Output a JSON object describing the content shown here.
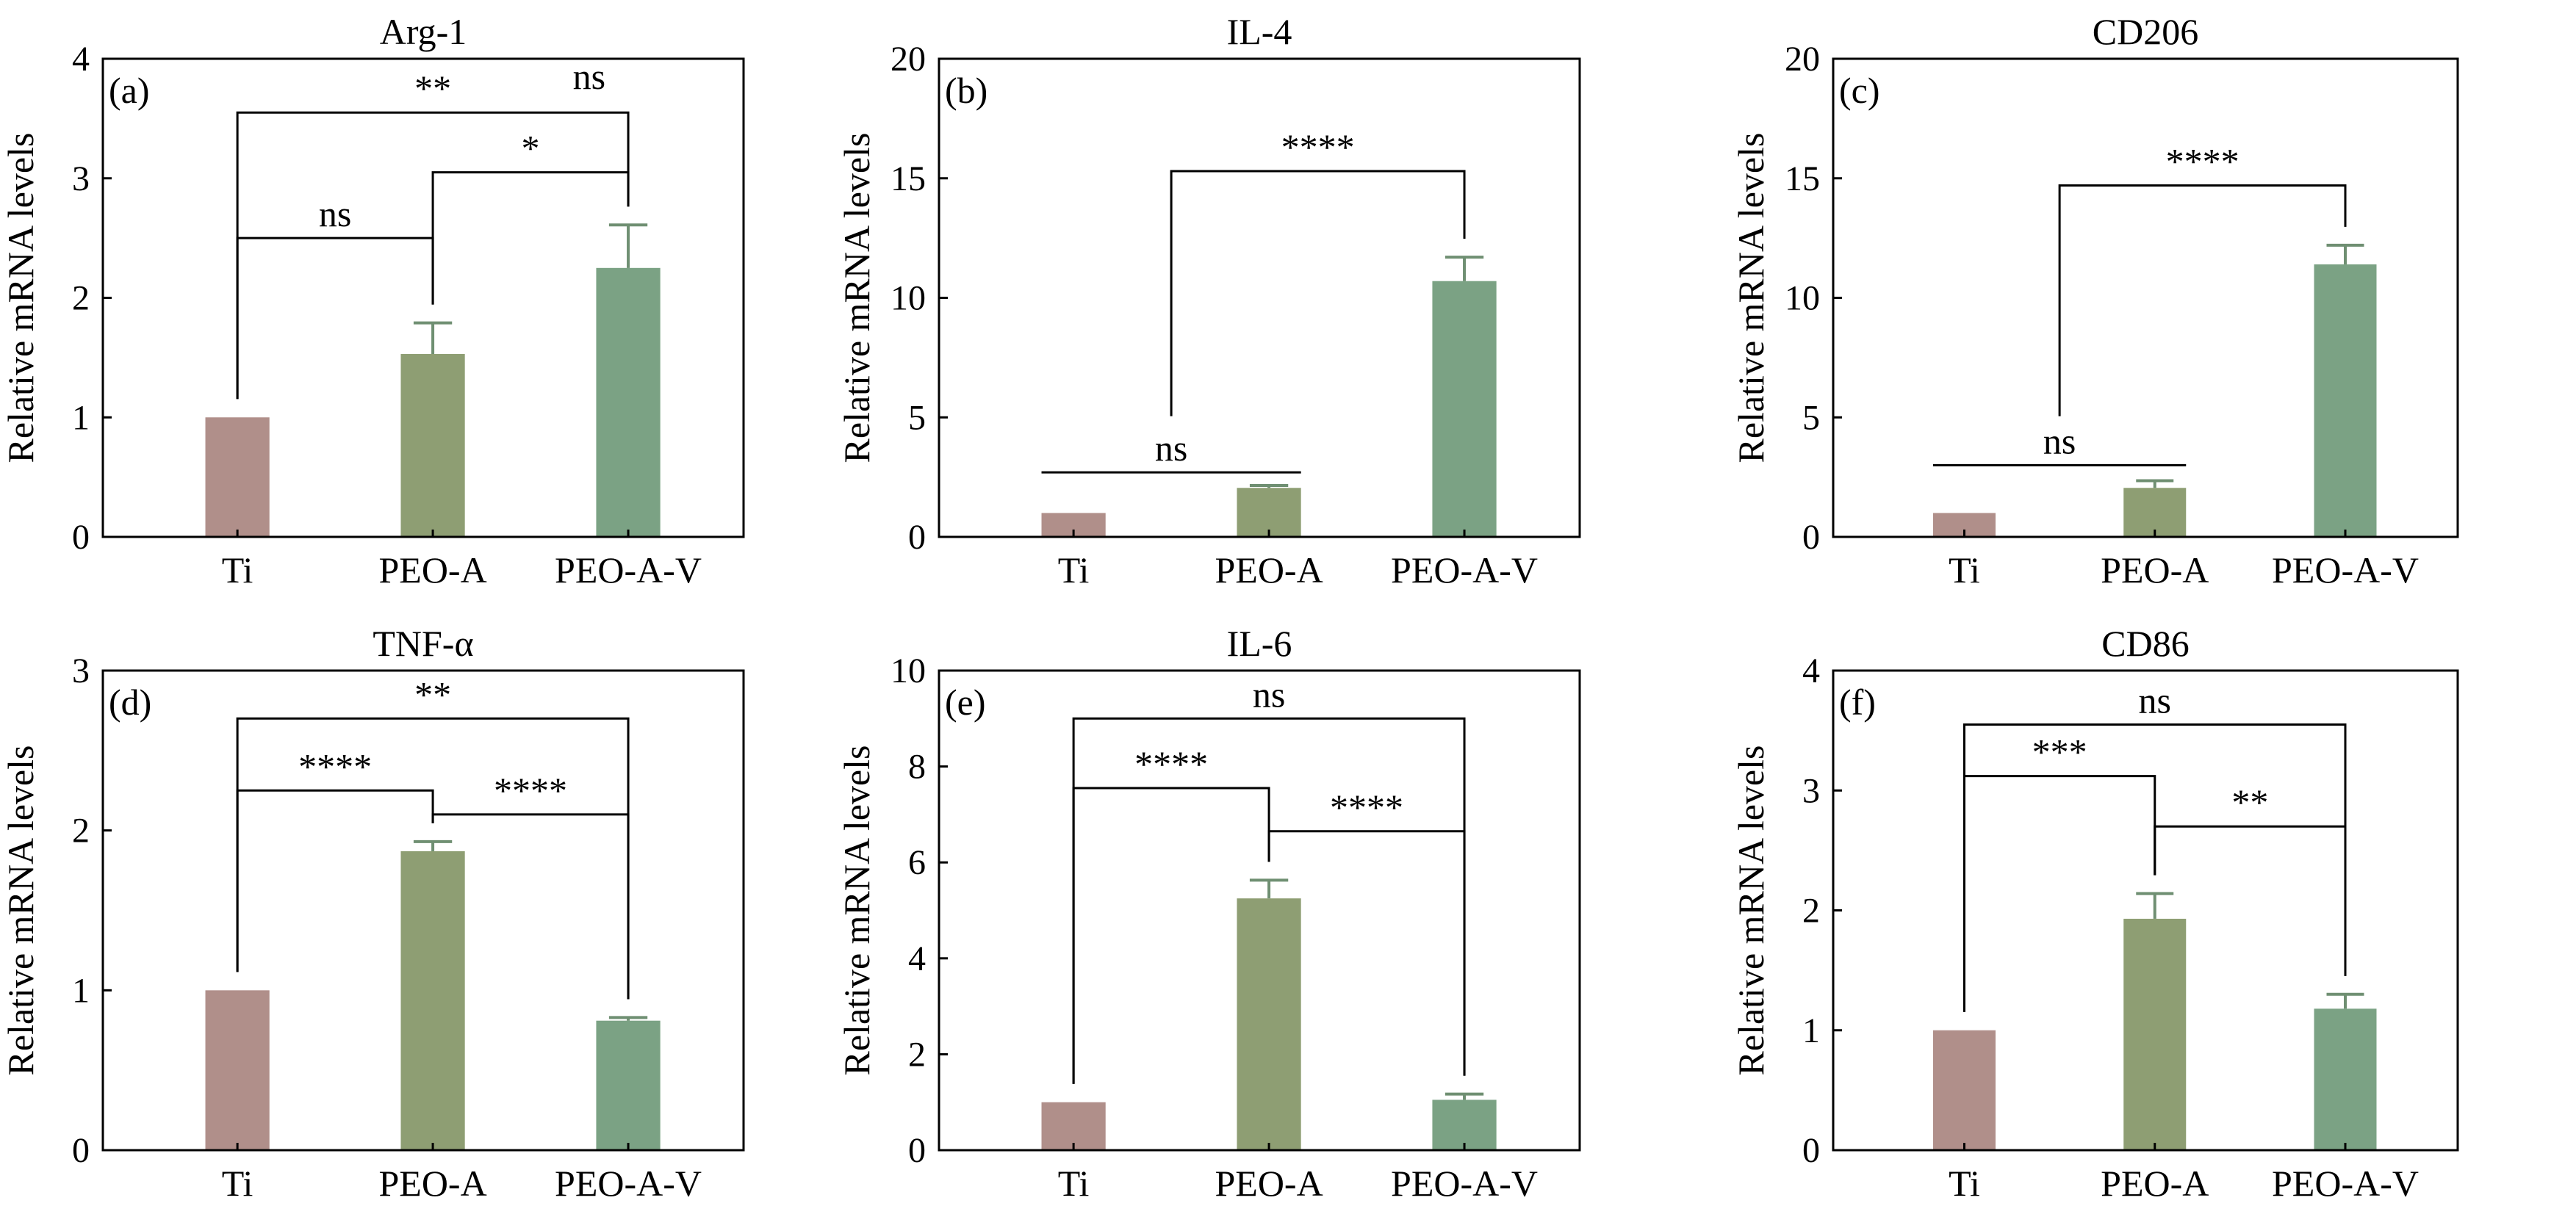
{
  "figure": {
    "ylabel": "Relative mRNA levels"
  },
  "colors": {
    "Ti": "#b08f8a",
    "PEO-A": "#8e9e73",
    "PEO-A-V": "#7ba284",
    "err": "#6f8f72",
    "axis": "#000000"
  },
  "chart_data": [
    {
      "type": "bar",
      "panel": "(a)",
      "title": "Arg-1",
      "ylabel": "Relative mRNA levels",
      "categories": [
        "Ti",
        "PEO-A",
        "PEO-A-V"
      ],
      "values": [
        1.0,
        1.53,
        2.25
      ],
      "errors": [
        0,
        0.26,
        0.36
      ],
      "ylim": [
        0,
        4
      ],
      "yticks": [
        0,
        1,
        2,
        3,
        4
      ],
      "significance": [
        {
          "a": 0,
          "b": 2,
          "label": "**",
          "y": 3.55
        },
        {
          "a": 1,
          "b": 2,
          "label": "*",
          "y": 3.05
        },
        {
          "a": 0,
          "b": 1,
          "label": "ns",
          "y": 2.5
        }
      ],
      "extra_labels": [
        {
          "text": "ns",
          "at": 1.8,
          "y": 3.65
        }
      ]
    },
    {
      "type": "bar",
      "panel": "(b)",
      "title": "IL-4",
      "ylabel": "Relative mRNA levels",
      "categories": [
        "Ti",
        "PEO-A",
        "PEO-A-V"
      ],
      "values": [
        1.0,
        2.05,
        10.7
      ],
      "errors": [
        0,
        0.1,
        1.0
      ],
      "ylim": [
        0,
        20
      ],
      "yticks": [
        0,
        5,
        10,
        15,
        20
      ],
      "significance": [
        {
          "a": 0.5,
          "b": 2,
          "label": "****",
          "y": 15.3
        },
        {
          "a": 0,
          "b": 1,
          "label": "ns",
          "y": 2.7,
          "flat": true
        }
      ]
    },
    {
      "type": "bar",
      "panel": "(c)",
      "title": "CD206",
      "ylabel": "Relative mRNA levels",
      "categories": [
        "Ti",
        "PEO-A",
        "PEO-A-V"
      ],
      "values": [
        1.0,
        2.05,
        11.4
      ],
      "errors": [
        0,
        0.3,
        0.8
      ],
      "ylim": [
        0,
        20
      ],
      "yticks": [
        0,
        5,
        10,
        15,
        20
      ],
      "significance": [
        {
          "a": 0.5,
          "b": 2,
          "label": "****",
          "y": 14.7
        },
        {
          "a": 0,
          "b": 1,
          "label": "ns",
          "y": 3.0,
          "flat": true
        }
      ]
    },
    {
      "type": "bar",
      "panel": "(d)",
      "title": "TNF-α",
      "ylabel": "Relative mRNA levels",
      "categories": [
        "Ti",
        "PEO-A",
        "PEO-A-V"
      ],
      "values": [
        1.0,
        1.87,
        0.81
      ],
      "errors": [
        0,
        0.06,
        0.02
      ],
      "ylim": [
        0,
        3
      ],
      "yticks": [
        0,
        1,
        2,
        3
      ],
      "significance": [
        {
          "a": 0,
          "b": 2,
          "label": "**",
          "y": 2.7
        },
        {
          "a": 0,
          "b": 1,
          "label": "****",
          "y": 2.25
        },
        {
          "a": 1,
          "b": 2,
          "label": "****",
          "y": 2.1
        }
      ]
    },
    {
      "type": "bar",
      "panel": "(e)",
      "title": "IL-6",
      "ylabel": "Relative mRNA levels",
      "categories": [
        "Ti",
        "PEO-A",
        "PEO-A-V"
      ],
      "values": [
        1.0,
        5.25,
        1.05
      ],
      "errors": [
        0,
        0.38,
        0.12
      ],
      "ylim": [
        0,
        10
      ],
      "yticks": [
        0,
        2,
        4,
        6,
        8,
        10
      ],
      "significance": [
        {
          "a": 0,
          "b": 2,
          "label": "ns",
          "y": 9.0
        },
        {
          "a": 0,
          "b": 1,
          "label": "****",
          "y": 7.55
        },
        {
          "a": 1,
          "b": 2,
          "label": "****",
          "y": 6.65
        }
      ]
    },
    {
      "type": "bar",
      "panel": "(f)",
      "title": "CD86",
      "ylabel": "Relative mRNA levels",
      "categories": [
        "Ti",
        "PEO-A",
        "PEO-A-V"
      ],
      "values": [
        1.0,
        1.93,
        1.18
      ],
      "errors": [
        0,
        0.21,
        0.12
      ],
      "ylim": [
        0,
        4
      ],
      "yticks": [
        0,
        1,
        2,
        3,
        4
      ],
      "significance": [
        {
          "a": 0,
          "b": 2,
          "label": "ns",
          "y": 3.55
        },
        {
          "a": 0,
          "b": 1,
          "label": "***",
          "y": 3.12
        },
        {
          "a": 1,
          "b": 2,
          "label": "**",
          "y": 2.7
        }
      ]
    }
  ]
}
